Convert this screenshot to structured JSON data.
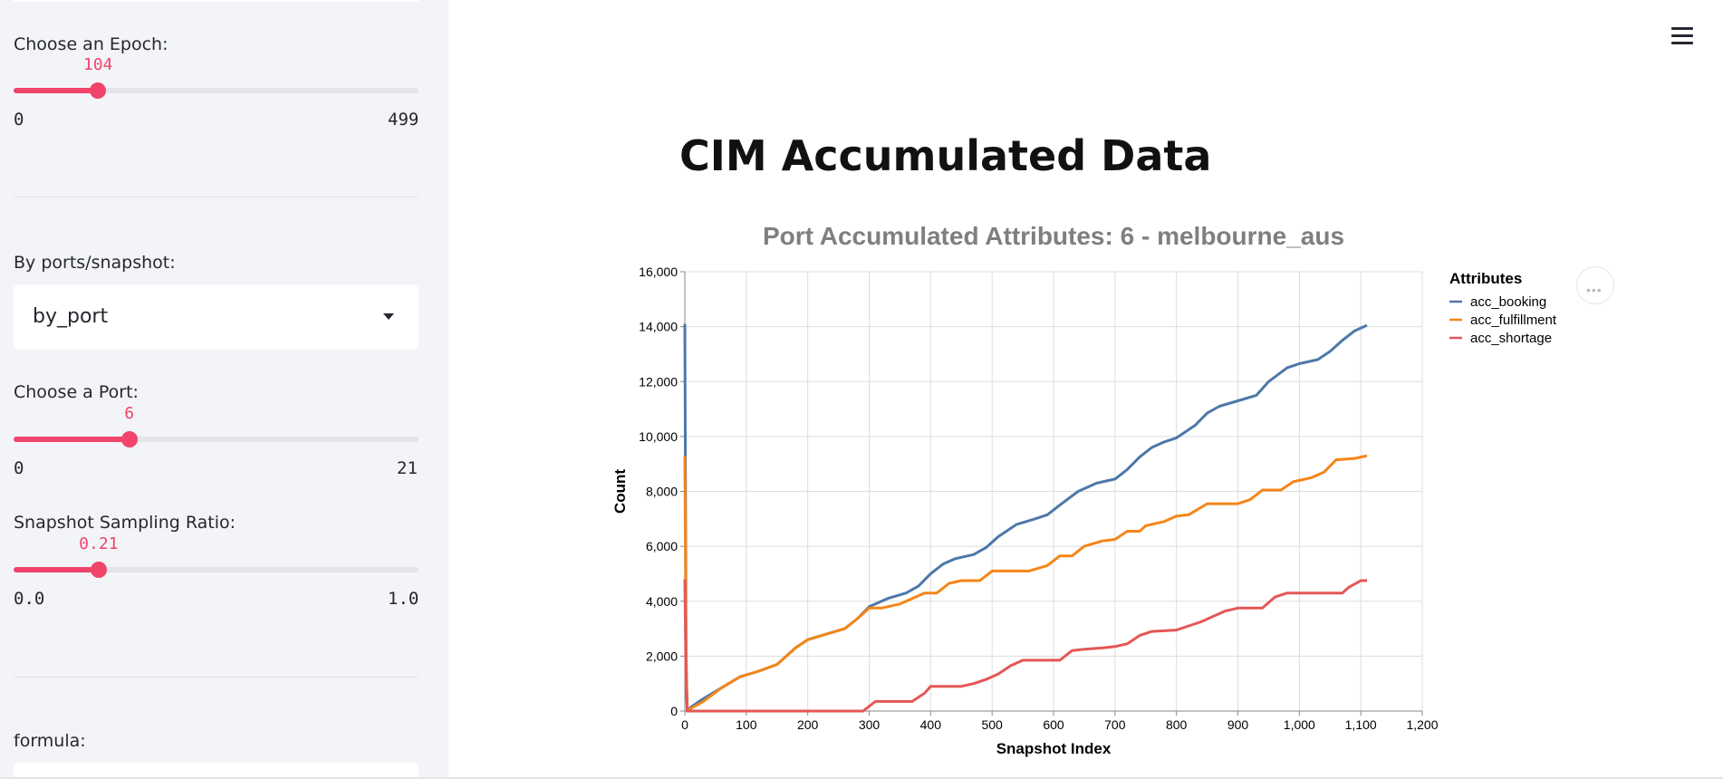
{
  "sidebar": {
    "epoch": {
      "label": "Choose an Epoch:",
      "value": "104",
      "min": "0",
      "max": "499",
      "fraction": 0.2084
    },
    "mode": {
      "label": "By ports/snapshot:",
      "selected": "by_port"
    },
    "port": {
      "label": "Choose a Port:",
      "value": "6",
      "min": "0",
      "max": "21",
      "fraction": 0.2857
    },
    "sampling": {
      "label": "Snapshot Sampling Ratio:",
      "value": "0.21",
      "min": "0.0",
      "max": "1.0",
      "fraction": 0.21
    },
    "formula": {
      "label": "formula:"
    }
  },
  "main": {
    "menu_icon": "hamburger-menu-icon",
    "title": "CIM Accumulated Data"
  },
  "colors": {
    "accent": "#f0446b",
    "series": [
      "#4c78a8",
      "#f58518",
      "#e45756"
    ]
  },
  "chart_data": {
    "type": "line",
    "title": "Port Accumulated Attributes: 6 - melbourne_aus",
    "xlabel": "Snapshot Index",
    "ylabel": "Count",
    "xlim": [
      0,
      1200
    ],
    "ylim": [
      0,
      16000
    ],
    "x_ticks": [
      "0",
      "100",
      "200",
      "300",
      "400",
      "500",
      "600",
      "700",
      "800",
      "900",
      "1,000",
      "1,100",
      "1,200"
    ],
    "y_ticks": [
      "0",
      "2,000",
      "4,000",
      "6,000",
      "8,000",
      "10,000",
      "12,000",
      "14,000",
      "16,000"
    ],
    "grid": true,
    "legend": {
      "title": "Attributes",
      "position": "top-right"
    },
    "series": [
      {
        "name": "acc_booking",
        "color": "#4c78a8",
        "points": [
          [
            0,
            14100
          ],
          [
            2,
            2000
          ],
          [
            4,
            0
          ],
          [
            10,
            150
          ],
          [
            30,
            450
          ],
          [
            60,
            850
          ],
          [
            90,
            1250
          ],
          [
            120,
            1450
          ],
          [
            150,
            1700
          ],
          [
            180,
            2300
          ],
          [
            200,
            2600
          ],
          [
            230,
            2800
          ],
          [
            260,
            3000
          ],
          [
            280,
            3350
          ],
          [
            300,
            3800
          ],
          [
            330,
            4100
          ],
          [
            360,
            4300
          ],
          [
            380,
            4550
          ],
          [
            400,
            5000
          ],
          [
            420,
            5350
          ],
          [
            440,
            5550
          ],
          [
            470,
            5700
          ],
          [
            490,
            5950
          ],
          [
            510,
            6350
          ],
          [
            540,
            6800
          ],
          [
            570,
            7000
          ],
          [
            590,
            7150
          ],
          [
            610,
            7500
          ],
          [
            640,
            8000
          ],
          [
            670,
            8300
          ],
          [
            700,
            8450
          ],
          [
            720,
            8800
          ],
          [
            740,
            9250
          ],
          [
            760,
            9600
          ],
          [
            780,
            9800
          ],
          [
            800,
            9950
          ],
          [
            830,
            10400
          ],
          [
            850,
            10850
          ],
          [
            870,
            11100
          ],
          [
            900,
            11300
          ],
          [
            930,
            11500
          ],
          [
            950,
            12000
          ],
          [
            980,
            12500
          ],
          [
            1000,
            12650
          ],
          [
            1030,
            12800
          ],
          [
            1050,
            13100
          ],
          [
            1070,
            13500
          ],
          [
            1090,
            13850
          ],
          [
            1110,
            14050
          ]
        ]
      },
      {
        "name": "acc_fulfillment",
        "color": "#f58518",
        "points": [
          [
            0,
            9300
          ],
          [
            2,
            1500
          ],
          [
            4,
            0
          ],
          [
            10,
            100
          ],
          [
            30,
            350
          ],
          [
            60,
            850
          ],
          [
            90,
            1250
          ],
          [
            120,
            1450
          ],
          [
            150,
            1700
          ],
          [
            180,
            2300
          ],
          [
            200,
            2600
          ],
          [
            230,
            2800
          ],
          [
            260,
            3000
          ],
          [
            280,
            3350
          ],
          [
            300,
            3750
          ],
          [
            320,
            3750
          ],
          [
            350,
            3900
          ],
          [
            380,
            4200
          ],
          [
            390,
            4300
          ],
          [
            410,
            4300
          ],
          [
            430,
            4650
          ],
          [
            450,
            4750
          ],
          [
            480,
            4750
          ],
          [
            500,
            5100
          ],
          [
            560,
            5100
          ],
          [
            590,
            5300
          ],
          [
            610,
            5650
          ],
          [
            630,
            5650
          ],
          [
            650,
            6000
          ],
          [
            680,
            6200
          ],
          [
            700,
            6250
          ],
          [
            720,
            6550
          ],
          [
            740,
            6550
          ],
          [
            750,
            6750
          ],
          [
            780,
            6900
          ],
          [
            800,
            7100
          ],
          [
            820,
            7150
          ],
          [
            850,
            7550
          ],
          [
            900,
            7550
          ],
          [
            920,
            7700
          ],
          [
            940,
            8050
          ],
          [
            970,
            8050
          ],
          [
            990,
            8350
          ],
          [
            1020,
            8500
          ],
          [
            1040,
            8700
          ],
          [
            1060,
            9150
          ],
          [
            1090,
            9200
          ],
          [
            1110,
            9300
          ]
        ]
      },
      {
        "name": "acc_shortage",
        "color": "#e45756",
        "points": [
          [
            0,
            4800
          ],
          [
            2,
            800
          ],
          [
            4,
            0
          ],
          [
            290,
            0
          ],
          [
            310,
            350
          ],
          [
            370,
            350
          ],
          [
            390,
            650
          ],
          [
            400,
            900
          ],
          [
            450,
            900
          ],
          [
            470,
            1000
          ],
          [
            490,
            1150
          ],
          [
            510,
            1350
          ],
          [
            530,
            1650
          ],
          [
            550,
            1850
          ],
          [
            610,
            1850
          ],
          [
            630,
            2200
          ],
          [
            650,
            2250
          ],
          [
            680,
            2300
          ],
          [
            700,
            2350
          ],
          [
            720,
            2450
          ],
          [
            740,
            2750
          ],
          [
            760,
            2900
          ],
          [
            800,
            2950
          ],
          [
            820,
            3100
          ],
          [
            840,
            3250
          ],
          [
            860,
            3450
          ],
          [
            880,
            3650
          ],
          [
            900,
            3750
          ],
          [
            940,
            3750
          ],
          [
            960,
            4150
          ],
          [
            980,
            4300
          ],
          [
            1070,
            4300
          ],
          [
            1080,
            4500
          ],
          [
            1100,
            4750
          ],
          [
            1110,
            4750
          ]
        ]
      }
    ]
  }
}
